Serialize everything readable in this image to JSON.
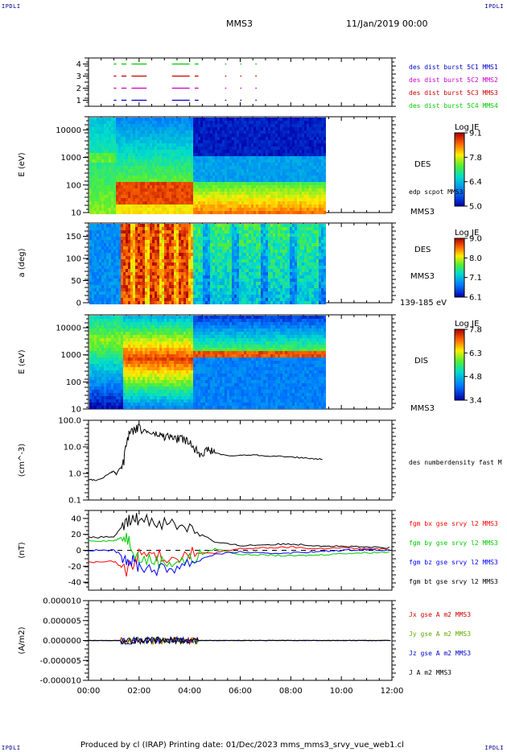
{
  "header": {
    "corner_left": "IPDLI",
    "corner_right": "IPDLI",
    "spacecraft": "MMS3",
    "date": "11/Jan/2019 00:00"
  },
  "footer": {
    "text": "Produced by cl (IRAP)   Printing date: 01/Dec/2023   mms_mms3_srvy_vue_web1.cl",
    "corner_left": "IPDLI",
    "corner_right": "IPDLI"
  },
  "time_axis": {
    "ticks": [
      "00:00",
      "02:00",
      "04:00",
      "06:00",
      "08:00",
      "10:00",
      "12:00"
    ],
    "range_hours": [
      0,
      12
    ]
  },
  "chart_data": [
    {
      "type": "scatter",
      "id": "availability",
      "ylim": [
        0.5,
        4.5
      ],
      "yticks": [
        "1",
        "2",
        "3",
        "4"
      ],
      "legend": [
        {
          "label": "des dist burst 5C1 MMS1",
          "color": "#0000cc"
        },
        {
          "label": "des dist burst 5C2 MMS2",
          "color": "#cc00cc"
        },
        {
          "label": "des dist burst 5C3 MMS3",
          "color": "#cc0000"
        },
        {
          "label": "des dist burst 5C4 MMS4",
          "color": "#00cc00"
        }
      ],
      "segments_hours": [
        [
          1.0,
          1.1
        ],
        [
          1.3,
          1.5
        ],
        [
          1.7,
          2.3
        ],
        [
          3.3,
          4.0
        ],
        [
          4.2,
          4.35
        ],
        [
          5.4,
          5.45
        ],
        [
          6.0,
          6.05
        ],
        [
          6.6,
          6.65
        ]
      ]
    },
    {
      "type": "heatmap",
      "id": "des-energy",
      "ylabel": "E (eV)",
      "ytick_labels": [
        "10",
        "100",
        "1000",
        "10000"
      ],
      "colorbar": {
        "title": "Log JE",
        "ticks": [
          "9.1",
          "7.8",
          "6.4",
          "5.0"
        ]
      },
      "right_labels": {
        "species": "DES",
        "note": "edp scpot MMS3",
        "spacecraft": "MMS3"
      }
    },
    {
      "type": "heatmap",
      "id": "des-pitch",
      "ylabel": "a (deg)",
      "ytick_labels": [
        "0",
        "50",
        "100",
        "150"
      ],
      "colorbar": {
        "title": "Log JE",
        "ticks": [
          "9.0",
          "8.0",
          "7.1",
          "6.1"
        ]
      },
      "right_labels": {
        "species": "DES",
        "spacecraft": "MMS3",
        "range": "139-185 eV"
      }
    },
    {
      "type": "heatmap",
      "id": "dis-energy",
      "ylabel": "E (eV)",
      "ytick_labels": [
        "10",
        "100",
        "1000",
        "10000"
      ],
      "colorbar": {
        "title": "Log JE",
        "ticks": [
          "7.8",
          "6.3",
          "4.8",
          "3.4"
        ]
      },
      "right_labels": {
        "species": "DIS",
        "spacecraft": "MMS3"
      }
    },
    {
      "type": "line",
      "id": "density",
      "ylabel": "(cm^-3)",
      "ylim": [
        0.1,
        100
      ],
      "yscale": "log",
      "ytick_labels": [
        "0.1",
        "1.0",
        "10.0",
        "100.0"
      ],
      "series": [
        {
          "name": "des numberdensity fast M",
          "color": "#000000",
          "x": [
            0.0,
            0.3,
            0.6,
            0.9,
            1.0,
            1.1,
            1.3,
            1.4,
            1.5,
            1.6,
            1.8,
            2.0,
            2.2,
            2.4,
            2.6,
            2.8,
            3.0,
            3.2,
            3.4,
            3.6,
            3.8,
            4.0,
            4.2,
            4.4,
            4.6,
            4.8,
            5.0,
            5.5,
            6.0,
            6.5,
            7.0,
            7.5,
            8.0,
            8.5,
            9.0,
            9.3
          ],
          "y": [
            0.6,
            0.55,
            0.7,
            1.1,
            1.2,
            0.9,
            1.8,
            3,
            15,
            30,
            45,
            55,
            40,
            35,
            30,
            28,
            25,
            26,
            20,
            22,
            18,
            15,
            9,
            6,
            7,
            8,
            6,
            4.5,
            4.8,
            5,
            4.6,
            4.4,
            4.2,
            3.8,
            3.5,
            3.4
          ]
        }
      ]
    },
    {
      "type": "line",
      "id": "magnetic-field",
      "ylabel": "(nT)",
      "ylim": [
        -50,
        50
      ],
      "ytick_labels": [
        "-40",
        "-20",
        "0",
        "20",
        "40"
      ],
      "series": [
        {
          "name": "fgm bx gse srvy l2 MMS3",
          "color": "#ff0000",
          "x": [
            0,
            1,
            1.5,
            2,
            3,
            4,
            5,
            6,
            7,
            8,
            9,
            10,
            11,
            12
          ],
          "y": [
            -15,
            -14,
            -25,
            -5,
            -8,
            -5,
            -3,
            2,
            3,
            4,
            2,
            3,
            2,
            1
          ]
        },
        {
          "name": "fgm by gse srvy l2 MMS3",
          "color": "#00cc00",
          "x": [
            0,
            1,
            1.5,
            2,
            3,
            4,
            5,
            6,
            7,
            8,
            9,
            10,
            11,
            12
          ],
          "y": [
            12,
            12,
            18,
            -10,
            -15,
            -12,
            2,
            -5,
            -6,
            -7,
            -6,
            -4,
            -3,
            -2
          ]
        },
        {
          "name": "fgm bz gse srvy l2 MMS3",
          "color": "#0000ff",
          "x": [
            0,
            1,
            1.5,
            2,
            3,
            4,
            5,
            6,
            7,
            8,
            9,
            10,
            11,
            12
          ],
          "y": [
            0,
            0,
            -10,
            -20,
            -25,
            -15,
            -5,
            -2,
            -4,
            -3,
            -2,
            0,
            1,
            0
          ]
        },
        {
          "name": "fgm bt gse srvy l2 MMS3",
          "color": "#000000",
          "x": [
            0,
            1,
            1.5,
            2,
            3,
            4,
            5,
            6,
            7,
            8,
            9,
            10,
            11,
            12
          ],
          "y": [
            16,
            17,
            35,
            40,
            35,
            30,
            10,
            6,
            7,
            8,
            6,
            5,
            4,
            3
          ]
        }
      ]
    },
    {
      "type": "line",
      "id": "current-density",
      "ylabel": "(A/m2)",
      "ylim": [
        -1e-05,
        1e-05
      ],
      "ytick_labels": [
        "-0.000010",
        "-0.000005",
        "0.000000",
        "0.000005",
        "0.000010"
      ],
      "series": [
        {
          "name": "Jx gse A m2 MMS3",
          "color": "#cc0000"
        },
        {
          "name": "Jy gse A m2 MMS3",
          "color": "#66aa00"
        },
        {
          "name": "Jz gse A m2 MMS3",
          "color": "#0000cc"
        },
        {
          "name": "J A m2 MMS3",
          "color": "#000000"
        }
      ]
    }
  ]
}
